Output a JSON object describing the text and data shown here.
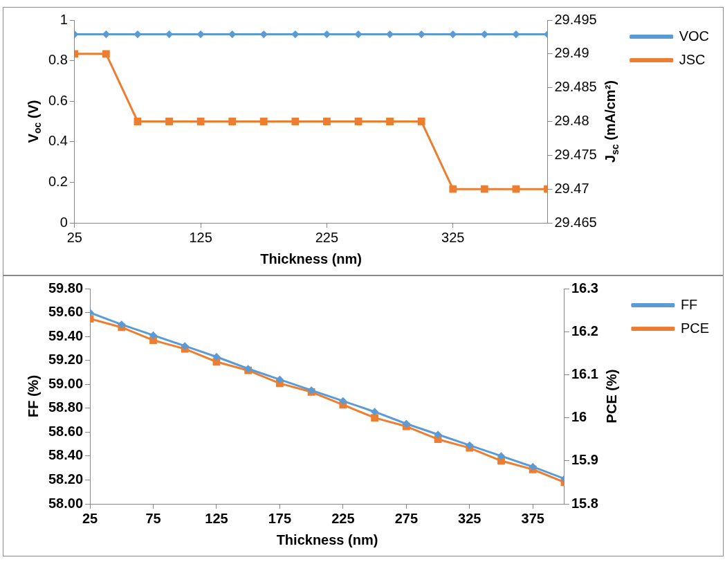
{
  "chart_data": [
    {
      "type": "line",
      "xlabel": "Thickness (nm)",
      "ylabel": "V$_{oc}$ (V)",
      "y2label": "J$_{sc}$ (mA/cm²)",
      "x": [
        25,
        50,
        75,
        100,
        125,
        150,
        175,
        200,
        225,
        250,
        275,
        300,
        325,
        350,
        375,
        400
      ],
      "xlim": [
        25,
        400
      ],
      "xticks": [
        25,
        125,
        225,
        325
      ],
      "ylim": [
        0,
        1
      ],
      "yticks": [
        0,
        0.2,
        0.4,
        0.6,
        0.8,
        1
      ],
      "y2lim": [
        29.465,
        29.495
      ],
      "y2ticks": [
        29.465,
        29.47,
        29.475,
        29.48,
        29.485,
        29.49,
        29.495
      ],
      "legend": "top right",
      "grid": false,
      "line_style": "solid",
      "series": [
        {
          "name": "VOC",
          "color": "#5b9bd5",
          "marker": "diamond",
          "values": [
            0.93,
            0.93,
            0.93,
            0.93,
            0.93,
            0.93,
            0.93,
            0.93,
            0.93,
            0.93,
            0.93,
            0.93,
            0.93,
            0.93,
            0.93,
            0.93
          ]
        },
        {
          "name": "JSC",
          "color": "#ed7d31",
          "marker": "square",
          "axis": "y2",
          "values": [
            29.49,
            29.49,
            29.48,
            29.48,
            29.48,
            29.48,
            29.48,
            29.48,
            29.48,
            29.48,
            29.48,
            29.48,
            29.47,
            29.47,
            29.47,
            29.47
          ]
        }
      ]
    },
    {
      "type": "line",
      "xlabel": "Thickness (nm)",
      "ylabel": "FF (%)",
      "y2label": "PCE (%)",
      "x": [
        25,
        50,
        75,
        100,
        125,
        150,
        175,
        200,
        225,
        250,
        275,
        300,
        325,
        350,
        375,
        400
      ],
      "xlim": [
        25,
        400
      ],
      "xticks": [
        25,
        75,
        125,
        175,
        225,
        275,
        325,
        375
      ],
      "ylim": [
        58,
        59.8
      ],
      "yticks": [
        {
          "value": 58,
          "label": "58.00"
        },
        {
          "value": 58.2,
          "label": "58.20"
        },
        {
          "value": 58.4,
          "label": "58.40"
        },
        {
          "value": 58.6,
          "label": "58.60"
        },
        {
          "value": 58.8,
          "label": "58.80"
        },
        {
          "value": 59,
          "label": "59.00"
        },
        {
          "value": 59.2,
          "label": "59.20"
        },
        {
          "value": 59.4,
          "label": "59.40"
        },
        {
          "value": 59.6,
          "label": "59.60"
        },
        {
          "value": 59.8,
          "label": "59.80"
        }
      ],
      "y2lim": [
        15.8,
        16.3
      ],
      "y2ticks": [
        15.8,
        15.9,
        16,
        16.1,
        16.2,
        16.3
      ],
      "legend": "top right",
      "grid": false,
      "line_style": "solid",
      "series": [
        {
          "name": "FF",
          "color": "#5b9bd5",
          "marker": "diamond",
          "values": [
            59.6,
            59.5,
            59.41,
            59.32,
            59.23,
            59.13,
            59.04,
            58.95,
            58.86,
            58.77,
            58.67,
            58.58,
            58.49,
            58.4,
            58.31,
            58.21
          ]
        },
        {
          "name": "PCE",
          "color": "#ed7d31",
          "marker": "square",
          "axis": "y2",
          "values": [
            16.23,
            16.21,
            16.18,
            16.16,
            16.13,
            16.11,
            16.08,
            16.06,
            16.03,
            16.0,
            15.98,
            15.95,
            15.93,
            15.9,
            15.88,
            15.85
          ]
        }
      ]
    }
  ]
}
